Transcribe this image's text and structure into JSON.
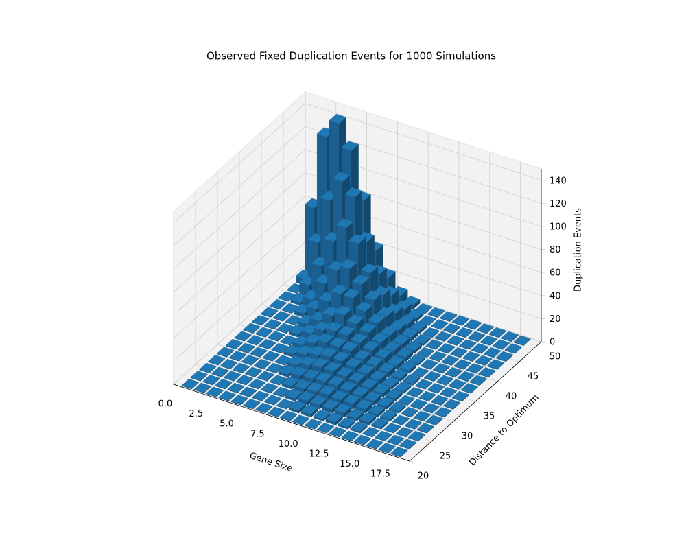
{
  "chart_data": {
    "type": "bar3d",
    "title": "Observed Fixed Duplication Events for 1000 Simulations",
    "xlabel": "Gene Size",
    "ylabel": "Distance to Optimum",
    "zlabel": "Duplication Events",
    "color": "#1f77b4",
    "x": [
      1,
      2,
      3,
      4,
      5,
      6,
      7,
      8,
      9,
      10,
      11,
      12,
      13,
      14,
      15,
      16,
      17,
      18
    ],
    "y": [
      21,
      23,
      25,
      27,
      29,
      31,
      33,
      35,
      37,
      39,
      41,
      43,
      45,
      47,
      49
    ],
    "values": [
      [
        0,
        0,
        0,
        0,
        0,
        0,
        0,
        0,
        0,
        0,
        0,
        0,
        0,
        5,
        60
      ],
      [
        0,
        0,
        0,
        0,
        0,
        0,
        0,
        0,
        0,
        0,
        0,
        2,
        10,
        40,
        125
      ],
      [
        0,
        0,
        0,
        0,
        0,
        0,
        0,
        0,
        0,
        0,
        3,
        8,
        30,
        80,
        140
      ],
      [
        0,
        0,
        0,
        0,
        0,
        0,
        0,
        0,
        2,
        4,
        10,
        25,
        55,
        100,
        120
      ],
      [
        0,
        0,
        0,
        0,
        0,
        0,
        2,
        3,
        6,
        10,
        20,
        40,
        70,
        90,
        80
      ],
      [
        0,
        0,
        0,
        0,
        2,
        3,
        5,
        8,
        12,
        18,
        30,
        45,
        60,
        55,
        40
      ],
      [
        0,
        0,
        0,
        2,
        4,
        6,
        8,
        12,
        15,
        22,
        30,
        35,
        38,
        30,
        20
      ],
      [
        0,
        0,
        2,
        3,
        5,
        8,
        10,
        12,
        15,
        18,
        22,
        25,
        22,
        15,
        8
      ],
      [
        0,
        2,
        3,
        4,
        6,
        8,
        10,
        12,
        12,
        14,
        15,
        14,
        10,
        6,
        3
      ],
      [
        0,
        2,
        3,
        5,
        6,
        7,
        8,
        8,
        9,
        9,
        8,
        6,
        4,
        2,
        0
      ],
      [
        0,
        1,
        3,
        4,
        5,
        6,
        6,
        6,
        6,
        5,
        4,
        3,
        2,
        0,
        0
      ],
      [
        0,
        2,
        3,
        4,
        4,
        4,
        4,
        4,
        3,
        3,
        2,
        1,
        0,
        0,
        0
      ],
      [
        0,
        1,
        2,
        3,
        3,
        3,
        2,
        2,
        2,
        1,
        0,
        0,
        0,
        0,
        0
      ],
      [
        0,
        1,
        2,
        2,
        2,
        2,
        1,
        1,
        0,
        0,
        0,
        0,
        0,
        0,
        0
      ],
      [
        0,
        0,
        1,
        1,
        1,
        0,
        0,
        0,
        0,
        0,
        0,
        0,
        0,
        0,
        0
      ],
      [
        0,
        0,
        0,
        0,
        0,
        0,
        0,
        0,
        0,
        0,
        0,
        0,
        0,
        0,
        0
      ],
      [
        0,
        0,
        0,
        0,
        0,
        0,
        0,
        0,
        0,
        0,
        0,
        0,
        0,
        0,
        0
      ],
      [
        0,
        0,
        0,
        0,
        0,
        0,
        0,
        0,
        0,
        0,
        0,
        0,
        0,
        0,
        0
      ]
    ],
    "xlim": [
      0,
      19.2
    ],
    "ylim": [
      20,
      50
    ],
    "zlim": [
      0,
      150
    ],
    "xticks": [
      {
        "value": 0,
        "label": "0.0"
      },
      {
        "value": 2.5,
        "label": "2.5"
      },
      {
        "value": 5,
        "label": "5.0"
      },
      {
        "value": 7.5,
        "label": "7.5"
      },
      {
        "value": 10,
        "label": "10.0"
      },
      {
        "value": 12.5,
        "label": "12.5"
      },
      {
        "value": 15,
        "label": "15.0"
      },
      {
        "value": 17.5,
        "label": "17.5"
      }
    ],
    "yticks": [
      20,
      25,
      30,
      35,
      40,
      45,
      50
    ],
    "zticks": [
      0,
      20,
      40,
      60,
      80,
      100,
      120,
      140
    ],
    "grid": true
  }
}
